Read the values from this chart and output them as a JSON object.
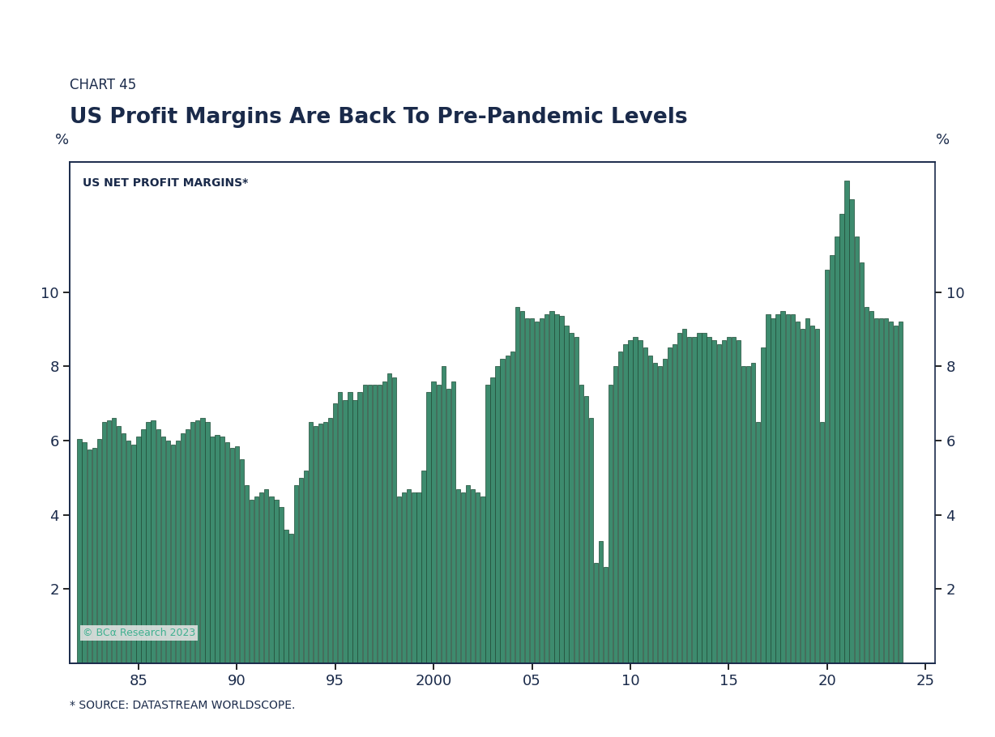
{
  "chart_label": "CHART 45",
  "title": "US Profit Margins Are Back To Pre-Pandemic Levels",
  "series_label": "US NET PROFIT MARGINS*",
  "source": "* SOURCE: DATASTREAM WORLDSCOPE.",
  "copyright": "© BCα Research 2023",
  "bar_color": "#3d8b6e",
  "bar_edge_color": "#1e4a35",
  "background_color": "#ffffff",
  "title_color": "#1a2a4a",
  "axis_color": "#1a2a4a",
  "ylabel_left": "%",
  "ylabel_right": "%",
  "ylim": [
    0,
    13.5
  ],
  "yticks": [
    2,
    4,
    6,
    8,
    10
  ],
  "xlim_start": 1981.5,
  "xlim_end": 2025.5,
  "xtick_vals": [
    1985,
    1990,
    1995,
    2000,
    2005,
    2010,
    2015,
    2020,
    2025
  ],
  "xtick_labels": [
    "85",
    "90",
    "95",
    "2000",
    "05",
    "10",
    "15",
    "20",
    "25"
  ],
  "data": [
    [
      1982.0,
      6.05
    ],
    [
      1982.25,
      5.95
    ],
    [
      1982.5,
      5.75
    ],
    [
      1982.75,
      5.8
    ],
    [
      1983.0,
      6.05
    ],
    [
      1983.25,
      6.5
    ],
    [
      1983.5,
      6.55
    ],
    [
      1983.75,
      6.6
    ],
    [
      1984.0,
      6.4
    ],
    [
      1984.25,
      6.2
    ],
    [
      1984.5,
      6.0
    ],
    [
      1984.75,
      5.9
    ],
    [
      1985.0,
      6.1
    ],
    [
      1985.25,
      6.3
    ],
    [
      1985.5,
      6.5
    ],
    [
      1985.75,
      6.55
    ],
    [
      1986.0,
      6.3
    ],
    [
      1986.25,
      6.1
    ],
    [
      1986.5,
      6.0
    ],
    [
      1986.75,
      5.9
    ],
    [
      1987.0,
      6.0
    ],
    [
      1987.25,
      6.2
    ],
    [
      1987.5,
      6.3
    ],
    [
      1987.75,
      6.5
    ],
    [
      1988.0,
      6.55
    ],
    [
      1988.25,
      6.6
    ],
    [
      1988.5,
      6.5
    ],
    [
      1988.75,
      6.1
    ],
    [
      1989.0,
      6.15
    ],
    [
      1989.25,
      6.1
    ],
    [
      1989.5,
      5.95
    ],
    [
      1989.75,
      5.8
    ],
    [
      1990.0,
      5.85
    ],
    [
      1990.25,
      5.5
    ],
    [
      1990.5,
      4.8
    ],
    [
      1990.75,
      4.4
    ],
    [
      1991.0,
      4.5
    ],
    [
      1991.25,
      4.6
    ],
    [
      1991.5,
      4.7
    ],
    [
      1991.75,
      4.5
    ],
    [
      1992.0,
      4.4
    ],
    [
      1992.25,
      4.2
    ],
    [
      1992.5,
      3.6
    ],
    [
      1992.75,
      3.5
    ],
    [
      1993.0,
      4.8
    ],
    [
      1993.25,
      5.0
    ],
    [
      1993.5,
      5.2
    ],
    [
      1993.75,
      6.5
    ],
    [
      1994.0,
      6.4
    ],
    [
      1994.25,
      6.45
    ],
    [
      1994.5,
      6.5
    ],
    [
      1994.75,
      6.6
    ],
    [
      1995.0,
      7.0
    ],
    [
      1995.25,
      7.3
    ],
    [
      1995.5,
      7.1
    ],
    [
      1995.75,
      7.3
    ],
    [
      1996.0,
      7.1
    ],
    [
      1996.25,
      7.3
    ],
    [
      1996.5,
      7.5
    ],
    [
      1996.75,
      7.5
    ],
    [
      1997.0,
      7.5
    ],
    [
      1997.25,
      7.5
    ],
    [
      1997.5,
      7.6
    ],
    [
      1997.75,
      7.8
    ],
    [
      1998.0,
      7.7
    ],
    [
      1998.25,
      4.5
    ],
    [
      1998.5,
      4.6
    ],
    [
      1998.75,
      4.7
    ],
    [
      1999.0,
      4.6
    ],
    [
      1999.25,
      4.6
    ],
    [
      1999.5,
      5.2
    ],
    [
      1999.75,
      7.3
    ],
    [
      2000.0,
      7.6
    ],
    [
      2000.25,
      7.5
    ],
    [
      2000.5,
      8.0
    ],
    [
      2000.75,
      7.4
    ],
    [
      2001.0,
      7.6
    ],
    [
      2001.25,
      4.7
    ],
    [
      2001.5,
      4.6
    ],
    [
      2001.75,
      4.8
    ],
    [
      2002.0,
      4.7
    ],
    [
      2002.25,
      4.6
    ],
    [
      2002.5,
      4.5
    ],
    [
      2002.75,
      7.5
    ],
    [
      2003.0,
      7.7
    ],
    [
      2003.25,
      8.0
    ],
    [
      2003.5,
      8.2
    ],
    [
      2003.75,
      8.3
    ],
    [
      2004.0,
      8.4
    ],
    [
      2004.25,
      9.6
    ],
    [
      2004.5,
      9.5
    ],
    [
      2004.75,
      9.3
    ],
    [
      2005.0,
      9.3
    ],
    [
      2005.25,
      9.2
    ],
    [
      2005.5,
      9.3
    ],
    [
      2005.75,
      9.4
    ],
    [
      2006.0,
      9.5
    ],
    [
      2006.25,
      9.4
    ],
    [
      2006.5,
      9.35
    ],
    [
      2006.75,
      9.1
    ],
    [
      2007.0,
      8.9
    ],
    [
      2007.25,
      8.8
    ],
    [
      2007.5,
      7.5
    ],
    [
      2007.75,
      7.2
    ],
    [
      2008.0,
      6.6
    ],
    [
      2008.25,
      2.7
    ],
    [
      2008.5,
      3.3
    ],
    [
      2008.75,
      2.6
    ],
    [
      2009.0,
      7.5
    ],
    [
      2009.25,
      8.0
    ],
    [
      2009.5,
      8.4
    ],
    [
      2009.75,
      8.6
    ],
    [
      2010.0,
      8.7
    ],
    [
      2010.25,
      8.8
    ],
    [
      2010.5,
      8.7
    ],
    [
      2010.75,
      8.5
    ],
    [
      2011.0,
      8.3
    ],
    [
      2011.25,
      8.1
    ],
    [
      2011.5,
      8.0
    ],
    [
      2011.75,
      8.2
    ],
    [
      2012.0,
      8.5
    ],
    [
      2012.25,
      8.6
    ],
    [
      2012.5,
      8.9
    ],
    [
      2012.75,
      9.0
    ],
    [
      2013.0,
      8.8
    ],
    [
      2013.25,
      8.8
    ],
    [
      2013.5,
      8.9
    ],
    [
      2013.75,
      8.9
    ],
    [
      2014.0,
      8.8
    ],
    [
      2014.25,
      8.7
    ],
    [
      2014.5,
      8.6
    ],
    [
      2014.75,
      8.7
    ],
    [
      2015.0,
      8.8
    ],
    [
      2015.25,
      8.8
    ],
    [
      2015.5,
      8.7
    ],
    [
      2015.75,
      8.0
    ],
    [
      2016.0,
      8.0
    ],
    [
      2016.25,
      8.1
    ],
    [
      2016.5,
      6.5
    ],
    [
      2016.75,
      8.5
    ],
    [
      2017.0,
      9.4
    ],
    [
      2017.25,
      9.3
    ],
    [
      2017.5,
      9.4
    ],
    [
      2017.75,
      9.5
    ],
    [
      2018.0,
      9.4
    ],
    [
      2018.25,
      9.4
    ],
    [
      2018.5,
      9.2
    ],
    [
      2018.75,
      9.0
    ],
    [
      2019.0,
      9.3
    ],
    [
      2019.25,
      9.1
    ],
    [
      2019.5,
      9.0
    ],
    [
      2019.75,
      6.5
    ],
    [
      2020.0,
      10.6
    ],
    [
      2020.25,
      11.0
    ],
    [
      2020.5,
      11.5
    ],
    [
      2020.75,
      12.1
    ],
    [
      2021.0,
      13.0
    ],
    [
      2021.25,
      12.5
    ],
    [
      2021.5,
      11.5
    ],
    [
      2021.75,
      10.8
    ],
    [
      2022.0,
      9.6
    ],
    [
      2022.25,
      9.5
    ],
    [
      2022.5,
      9.3
    ],
    [
      2022.75,
      9.3
    ],
    [
      2023.0,
      9.3
    ],
    [
      2023.25,
      9.2
    ],
    [
      2023.5,
      9.1
    ],
    [
      2023.75,
      9.2
    ]
  ]
}
